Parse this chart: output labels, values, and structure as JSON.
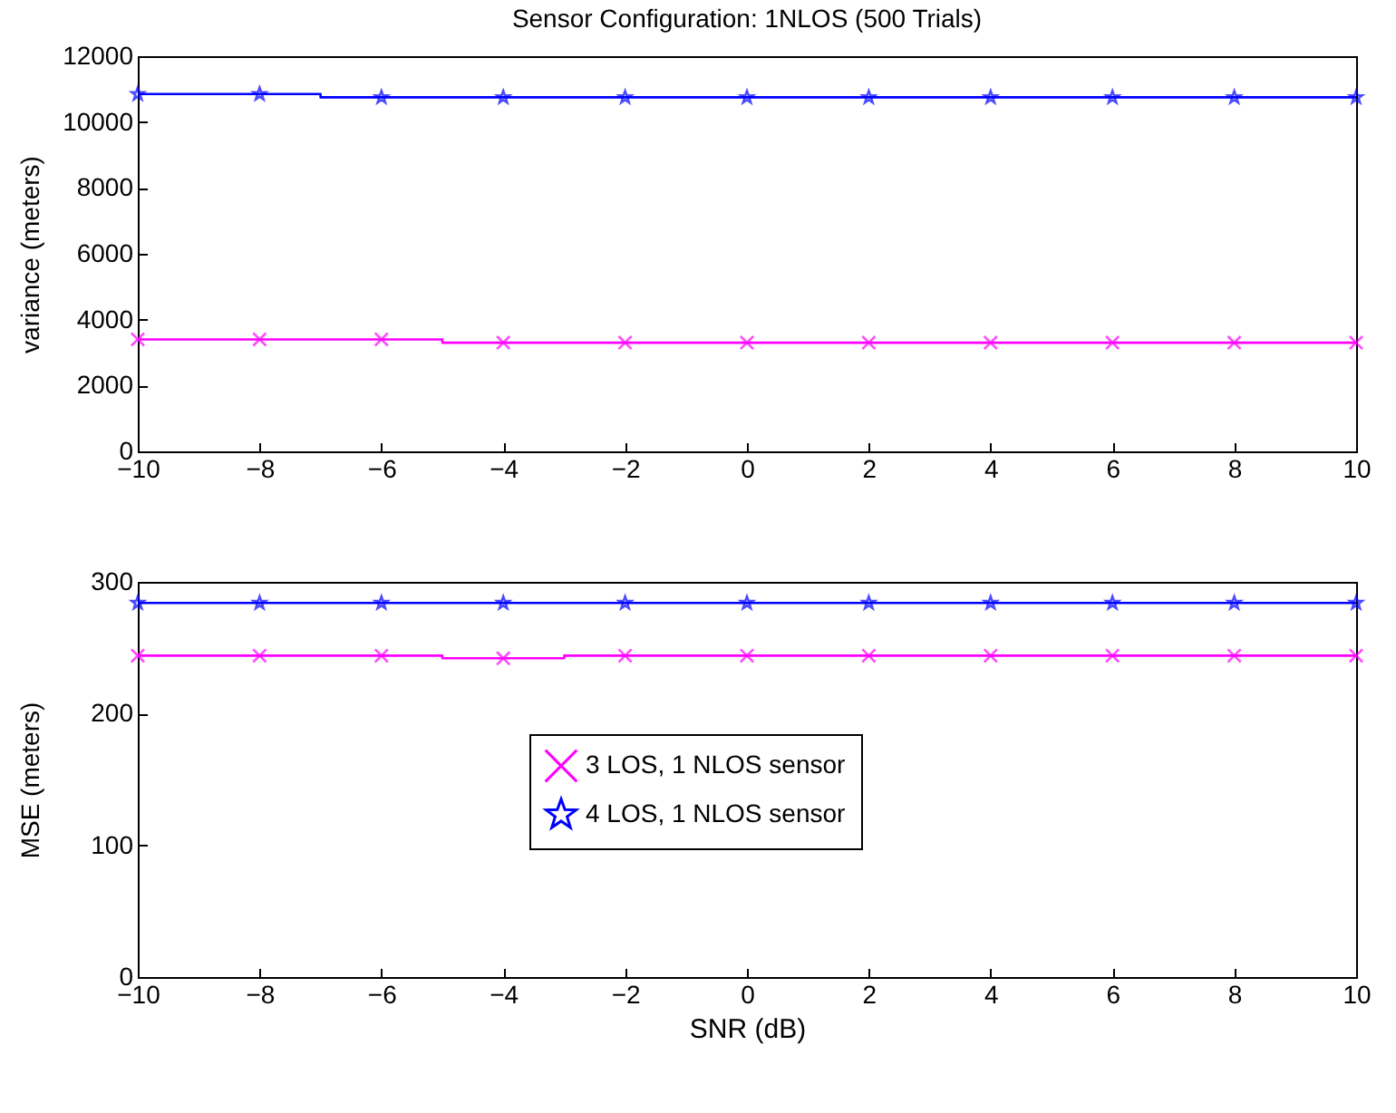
{
  "chart_data": [
    {
      "type": "step",
      "title": "Sensor Configuration: 1NLOS (500 Trials)",
      "ylabel": "variance (meters)",
      "x": [
        -10,
        -8,
        -6,
        -4,
        -2,
        0,
        2,
        4,
        6,
        8,
        10
      ],
      "xlim": [
        -10,
        10
      ],
      "xticks": [
        -10,
        -8,
        -6,
        -4,
        -2,
        0,
        2,
        4,
        6,
        8,
        10
      ],
      "ylim": [
        0,
        12000
      ],
      "yticks": [
        0,
        2000,
        4000,
        6000,
        8000,
        10000,
        12000
      ],
      "grid": false,
      "series": [
        {
          "color": "#ff00ff",
          "marker": "cross",
          "values": [
            3400,
            3400,
            3400,
            3300,
            3300,
            3300,
            3300,
            3300,
            3300,
            3300,
            3300
          ]
        },
        {
          "color": "#0000ff",
          "marker": "star",
          "values": [
            10850,
            10850,
            10750,
            10750,
            10750,
            10750,
            10750,
            10750,
            10750,
            10750,
            10750
          ]
        }
      ]
    },
    {
      "type": "step",
      "xlabel": "SNR (dB)",
      "ylabel": "MSE (meters)",
      "x": [
        -10,
        -8,
        -6,
        -4,
        -2,
        0,
        2,
        4,
        6,
        8,
        10
      ],
      "xlim": [
        -10,
        10
      ],
      "xticks": [
        -10,
        -8,
        -6,
        -4,
        -2,
        0,
        2,
        4,
        6,
        8,
        10
      ],
      "ylim": [
        0,
        300
      ],
      "yticks": [
        0,
        100,
        200,
        300
      ],
      "grid": false,
      "legend": "center",
      "series": [
        {
          "name": "3 LOS, 1 NLOS sensor",
          "color": "#ff00ff",
          "marker": "cross",
          "values": [
            244,
            244,
            244,
            242,
            244,
            244,
            244,
            244,
            244,
            244,
            244
          ]
        },
        {
          "name": "4 LOS, 1 NLOS sensor",
          "color": "#0000ff",
          "marker": "star",
          "values": [
            284,
            284,
            284,
            284,
            284,
            284,
            284,
            284,
            284,
            284,
            284
          ]
        }
      ]
    }
  ]
}
